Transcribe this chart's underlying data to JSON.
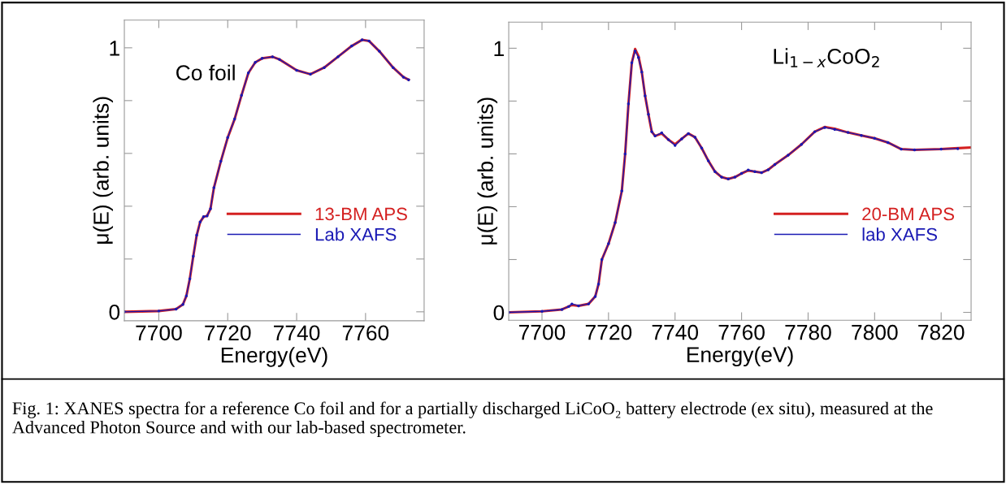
{
  "chart_data": [
    {
      "type": "line",
      "xlabel": "Energy(eV)",
      "ylabel": "μ(E) (arb. units)",
      "xlim": [
        7690,
        7777
      ],
      "ylim": [
        -0.034,
        1.105
      ],
      "xticks": [
        7700,
        7720,
        7740,
        7760
      ],
      "yticks": [
        0,
        {
          "value": 0.2,
          "label": null
        },
        {
          "value": 0.4,
          "label": null
        },
        {
          "value": 0.6,
          "label": null
        },
        {
          "value": 0.8,
          "label": null
        },
        1
      ],
      "legend": "bottom right",
      "grid": false,
      "annotations": [
        "Co foil",
        "Fig. 1: XANES spectra for a reference Co foil and for a partially discharged LiCoO₂ battery electrode (ex situ), measured at the Advanced Photon Source and with our lab-based spectrometer."
      ],
      "series": [
        {
          "name": "13-BM APS",
          "color": "#d42020",
          "marker": "none",
          "x": [
            7690,
            7700,
            7705,
            7707,
            7708,
            7709,
            7710,
            7711,
            7712,
            7713,
            7714,
            7715,
            7716,
            7718,
            7720,
            7722,
            7724,
            7726,
            7728,
            7730,
            7733,
            7735,
            7740,
            7744,
            7748,
            7752,
            7756,
            7759,
            7761,
            7764,
            7768,
            7771,
            7772.5
          ],
          "values": [
            0,
            0.003,
            0.01,
            0.028,
            0.06,
            0.125,
            0.21,
            0.29,
            0.34,
            0.36,
            0.363,
            0.39,
            0.47,
            0.57,
            0.66,
            0.73,
            0.82,
            0.905,
            0.945,
            0.96,
            0.966,
            0.956,
            0.915,
            0.9,
            0.925,
            0.966,
            1.007,
            1.03,
            1.026,
            0.987,
            0.925,
            0.889,
            0.879
          ]
        },
        {
          "name": "Lab XAFS",
          "color": "#1a1ab4",
          "marker": "circle",
          "x": [
            7690,
            7700,
            7705,
            7707,
            7708,
            7709,
            7710,
            7711,
            7712,
            7713,
            7714,
            7715,
            7716,
            7718,
            7720,
            7722,
            7724,
            7726,
            7728,
            7730,
            7733,
            7735,
            7740,
            7744,
            7748,
            7752,
            7756,
            7759,
            7761,
            7764,
            7768,
            7771,
            7772.5
          ],
          "values": [
            0,
            0.003,
            0.01,
            0.028,
            0.06,
            0.125,
            0.21,
            0.29,
            0.34,
            0.36,
            0.363,
            0.39,
            0.47,
            0.57,
            0.66,
            0.73,
            0.82,
            0.905,
            0.945,
            0.96,
            0.966,
            0.956,
            0.915,
            0.9,
            0.925,
            0.966,
            1.007,
            1.03,
            1.026,
            0.987,
            0.925,
            0.889,
            0.879
          ]
        }
      ]
    },
    {
      "type": "line",
      "xlabel": "Energy(eV)",
      "ylabel": "μ(E) (arb. units)",
      "xlim": [
        7690,
        7829
      ],
      "ylim": [
        -0.03,
        1.099
      ],
      "xticks": [
        7700,
        7720,
        7740,
        7760,
        7780,
        7800,
        7820
      ],
      "yticks": [
        0,
        {
          "value": 0.2,
          "label": null
        },
        {
          "value": 0.4,
          "label": null
        },
        {
          "value": 0.6,
          "label": null
        },
        {
          "value": 0.8,
          "label": null
        },
        1
      ],
      "legend": "bottom right",
      "grid": false,
      "annotations": [
        "Li$_{1−x}$CoO$_{2}$"
      ],
      "series": [
        {
          "name": "20-BM APS",
          "color": "#d42020",
          "marker": "none",
          "x": [
            7690,
            7700,
            7706,
            7708,
            7709,
            7711,
            7714,
            7716,
            7717,
            7718,
            7720,
            7722,
            7724,
            7725,
            7726,
            7727,
            7728,
            7729,
            7730,
            7731,
            7732,
            7733,
            7734,
            7736,
            7738,
            7740,
            7742,
            7744,
            7746,
            7748,
            7750,
            7752,
            7754,
            7756,
            7758,
            7760,
            7762,
            7764,
            7766,
            7768,
            7770,
            7774,
            7778,
            7782,
            7785,
            7788,
            7792,
            7796,
            7800,
            7804,
            7808,
            7812,
            7820,
            7824,
            7829
          ],
          "values": [
            0,
            0.004,
            0.011,
            0.022,
            0.028,
            0.025,
            0.032,
            0.06,
            0.107,
            0.2,
            0.26,
            0.34,
            0.46,
            0.6,
            0.79,
            0.945,
            0.997,
            0.97,
            0.91,
            0.82,
            0.75,
            0.684,
            0.668,
            0.677,
            0.654,
            0.636,
            0.657,
            0.677,
            0.663,
            0.622,
            0.574,
            0.533,
            0.512,
            0.505,
            0.512,
            0.526,
            0.537,
            0.533,
            0.529,
            0.54,
            0.56,
            0.595,
            0.636,
            0.684,
            0.702,
            0.695,
            0.681,
            0.67,
            0.659,
            0.643,
            0.618,
            0.615,
            0.618,
            0.621,
            0.624
          ]
        },
        {
          "name": "lab XAFS",
          "color": "#1a1ab4",
          "marker": "circle",
          "x": [
            7690,
            7700,
            7706,
            7708,
            7709,
            7711,
            7714,
            7716,
            7717,
            7718,
            7720,
            7722,
            7724,
            7725,
            7726,
            7727,
            7728,
            7729,
            7730,
            7731,
            7732,
            7733,
            7734,
            7736,
            7738,
            7740,
            7742,
            7744,
            7746,
            7748,
            7750,
            7752,
            7754,
            7756,
            7758,
            7760,
            7762,
            7764,
            7766,
            7768,
            7770,
            7774,
            7778,
            7782,
            7785,
            7788,
            7792,
            7796,
            7800,
            7804,
            7808,
            7812,
            7820,
            7825
          ],
          "values": [
            0,
            0.004,
            0.011,
            0.022,
            0.032,
            0.025,
            0.032,
            0.06,
            0.107,
            0.2,
            0.26,
            0.34,
            0.46,
            0.6,
            0.79,
            0.945,
            0.99,
            0.965,
            0.91,
            0.82,
            0.75,
            0.684,
            0.668,
            0.68,
            0.654,
            0.632,
            0.657,
            0.677,
            0.663,
            0.622,
            0.574,
            0.533,
            0.512,
            0.505,
            0.512,
            0.526,
            0.539,
            0.533,
            0.529,
            0.54,
            0.56,
            0.595,
            0.636,
            0.684,
            0.7,
            0.693,
            0.681,
            0.67,
            0.659,
            0.643,
            0.618,
            0.615,
            0.618,
            0.62
          ]
        }
      ]
    }
  ]
}
